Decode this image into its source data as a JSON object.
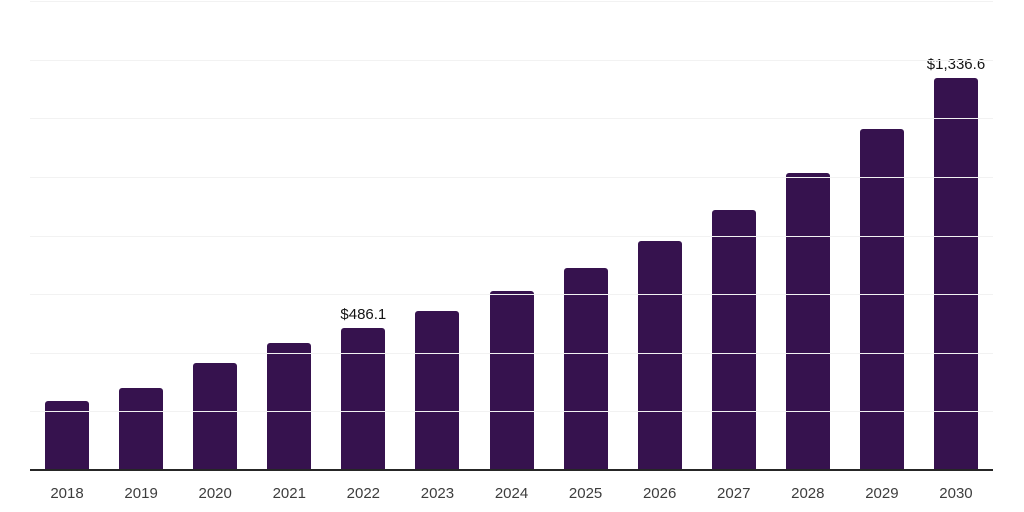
{
  "chart": {
    "background_color": "#ffffff",
    "bar_color": "#36124E",
    "axis_color": "#262626",
    "gridline_color": "#f2f2f2",
    "value_label_color": "#141414",
    "tick_label_color": "#3d3d3d"
  },
  "chart_data": {
    "type": "bar",
    "title": "",
    "xlabel": "",
    "ylabel": "",
    "categories": [
      "2018",
      "2019",
      "2020",
      "2021",
      "2022",
      "2023",
      "2024",
      "2025",
      "2026",
      "2027",
      "2028",
      "2029",
      "2030"
    ],
    "values": [
      236.4,
      278.8,
      365.1,
      432.3,
      486.1,
      542.4,
      610.7,
      688.1,
      781.4,
      887.1,
      1012.4,
      1162.5,
      1336.6
    ],
    "data_labels": {
      "2022": "$486.1",
      "2030": "$1,336.6"
    },
    "ylim": [
      0,
      1600
    ],
    "gridline_step": 200,
    "grid": true,
    "y_tick_labels_visible": false,
    "legend": "none"
  }
}
